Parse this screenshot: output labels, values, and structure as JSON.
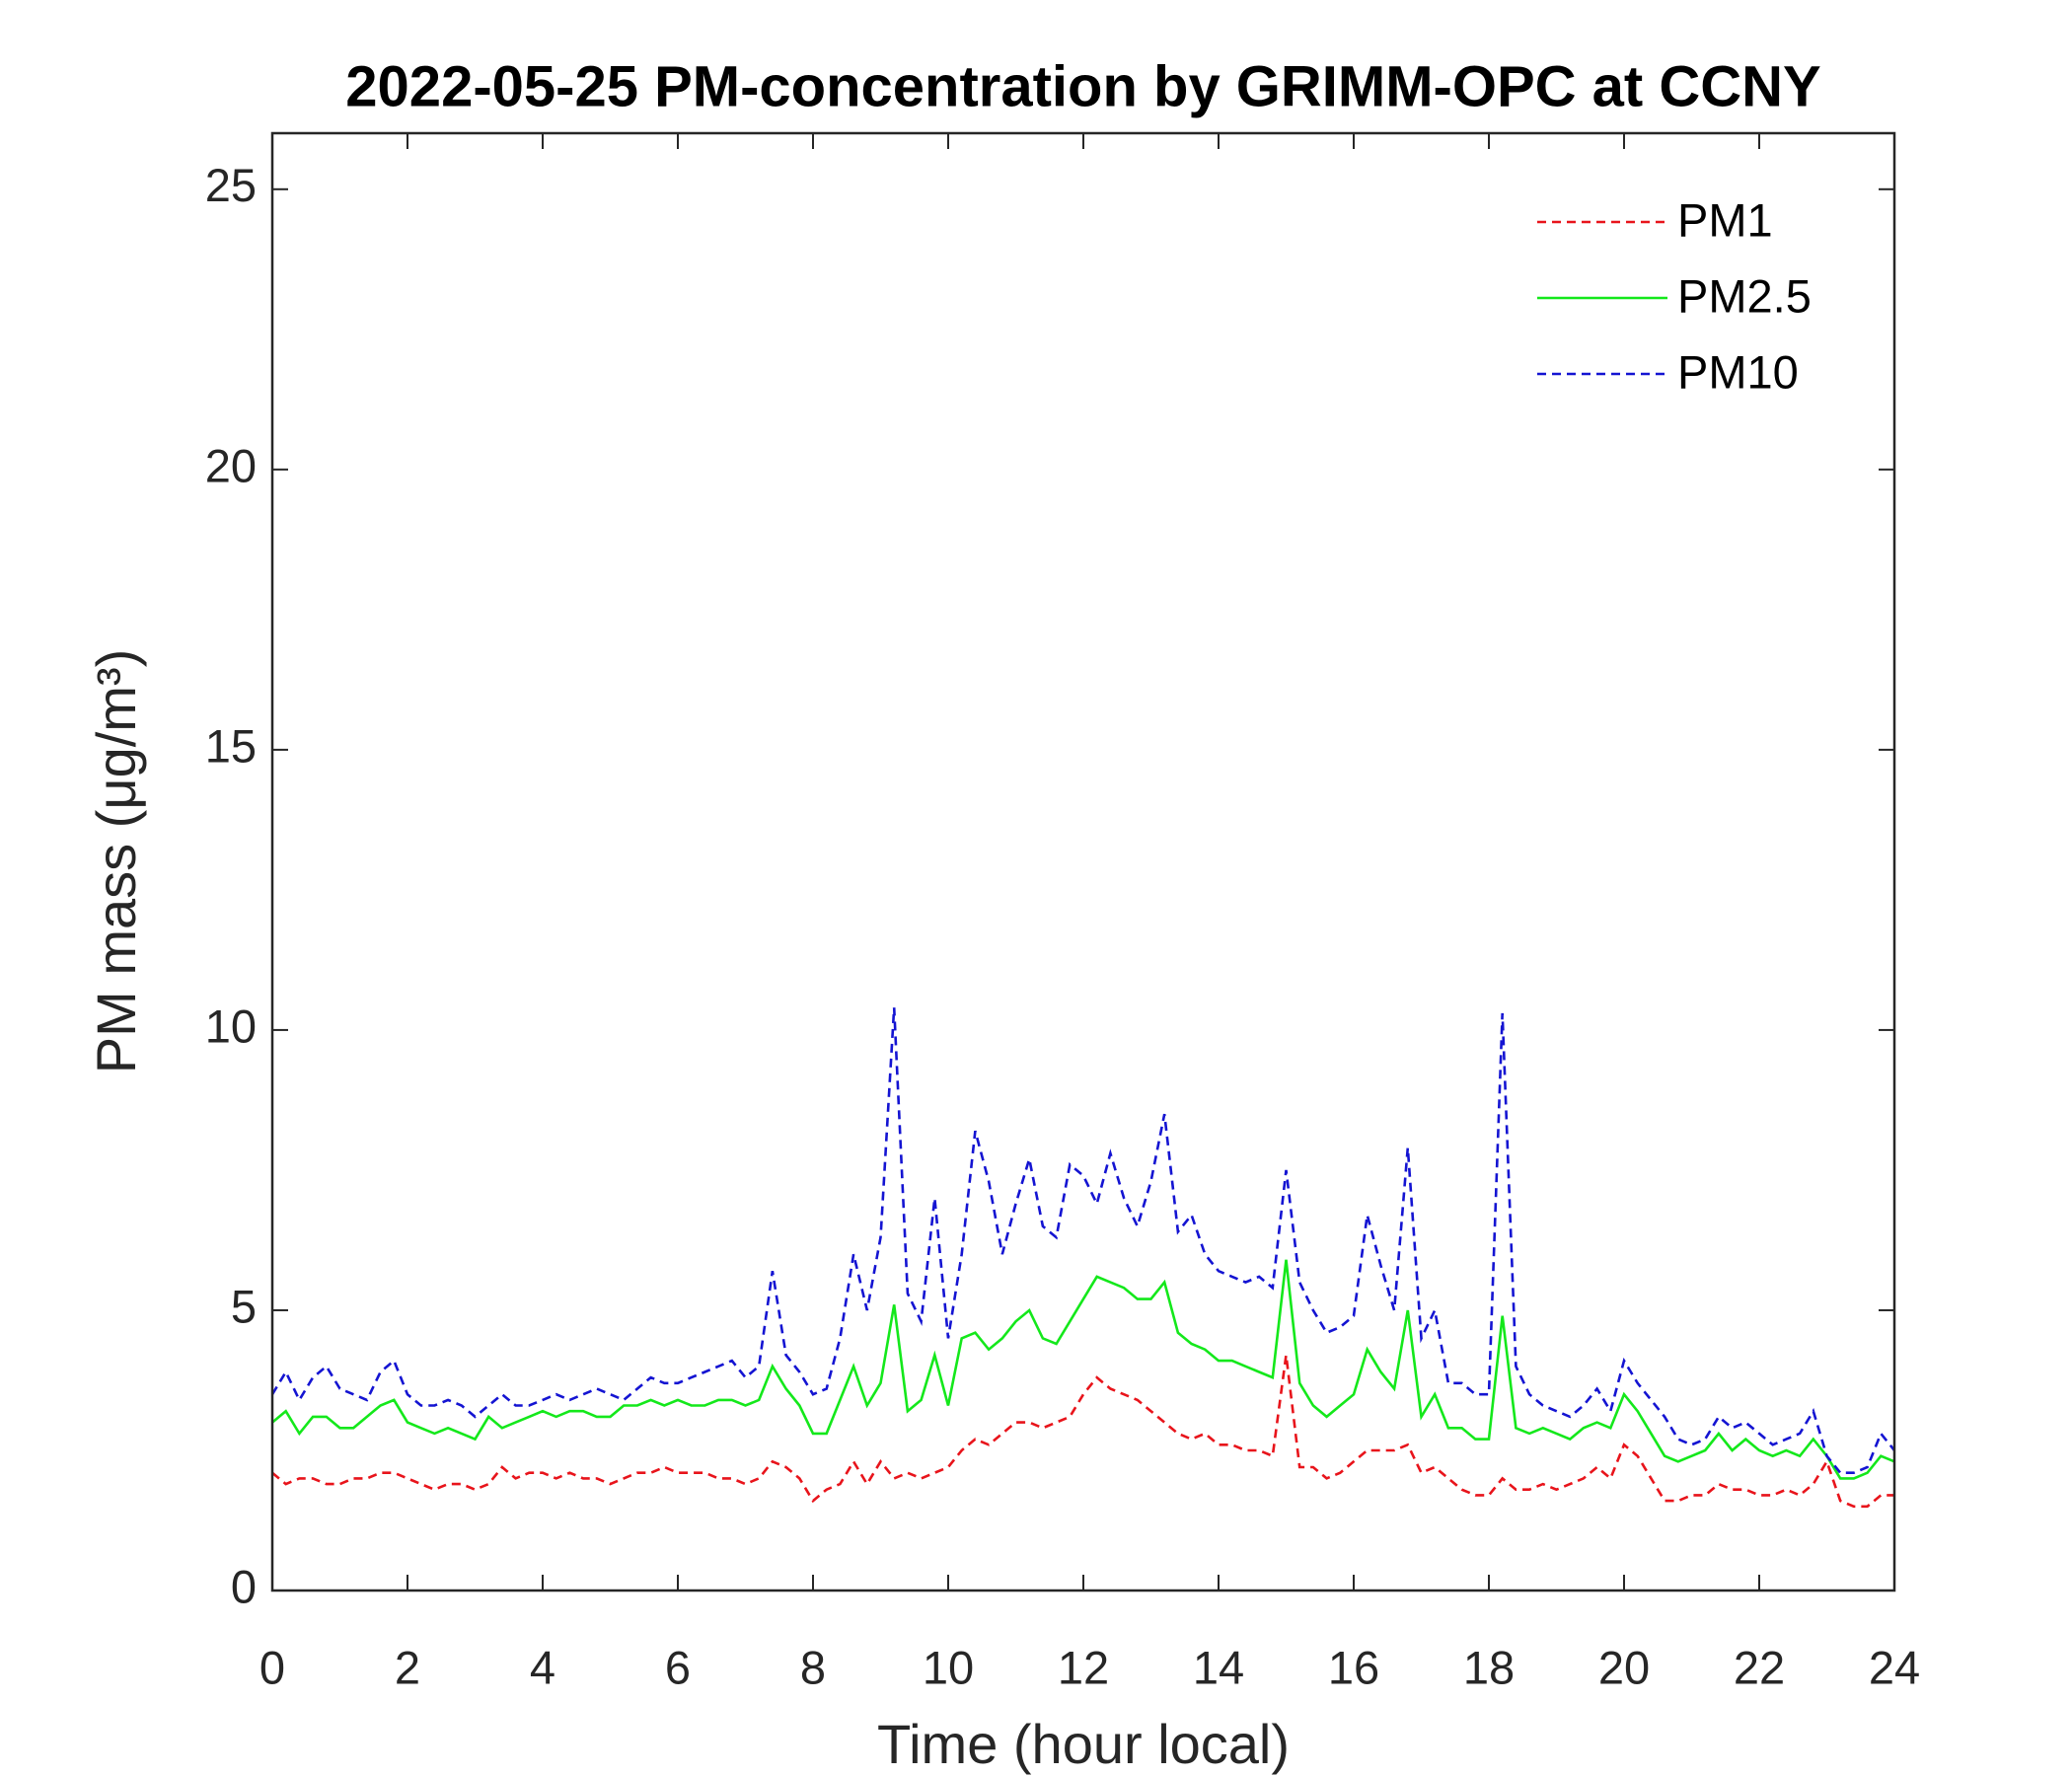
{
  "chart_data": {
    "type": "line",
    "title": "2022-05-25 PM-concentration by GRIMM-OPC at CCNY",
    "xlabel": "Time (hour local)",
    "ylabel": "PM mass (μg/m³)",
    "x": [
      0,
      0.2,
      0.4,
      0.6,
      0.8,
      1,
      1.2,
      1.4,
      1.6,
      1.8,
      2,
      2.2,
      2.4,
      2.6,
      2.8,
      3,
      3.2,
      3.4,
      3.6,
      3.8,
      4,
      4.2,
      4.4,
      4.6,
      4.8,
      5,
      5.2,
      5.4,
      5.6,
      5.8,
      6,
      6.2,
      6.4,
      6.6,
      6.8,
      7,
      7.2,
      7.4,
      7.6,
      7.8,
      8,
      8.2,
      8.4,
      8.6,
      8.8,
      9,
      9.2,
      9.4,
      9.6,
      9.8,
      10,
      10.2,
      10.4,
      10.6,
      10.8,
      11,
      11.2,
      11.4,
      11.6,
      11.8,
      12,
      12.2,
      12.4,
      12.6,
      12.8,
      13,
      13.2,
      13.4,
      13.6,
      13.8,
      14,
      14.2,
      14.4,
      14.6,
      14.8,
      15,
      15.2,
      15.4,
      15.6,
      15.8,
      16,
      16.2,
      16.4,
      16.6,
      16.8,
      17,
      17.2,
      17.4,
      17.6,
      17.8,
      18,
      18.2,
      18.4,
      18.6,
      18.8,
      19,
      19.2,
      19.4,
      19.6,
      19.8,
      20,
      20.2,
      20.4,
      20.6,
      20.8,
      21,
      21.2,
      21.4,
      21.6,
      21.8,
      22,
      22.2,
      22.4,
      22.6,
      22.8,
      23,
      23.2,
      23.4,
      23.6,
      23.8,
      24
    ],
    "series": [
      {
        "name": "PM1",
        "color": "#e8141b",
        "linestyle": "dashed",
        "values": [
          2.1,
          1.9,
          2.0,
          2.0,
          1.9,
          1.9,
          2.0,
          2.0,
          2.1,
          2.1,
          2.0,
          1.9,
          1.8,
          1.9,
          1.9,
          1.8,
          1.9,
          2.2,
          2.0,
          2.1,
          2.1,
          2.0,
          2.1,
          2.0,
          2.0,
          1.9,
          2.0,
          2.1,
          2.1,
          2.2,
          2.1,
          2.1,
          2.1,
          2.0,
          2.0,
          1.9,
          2.0,
          2.3,
          2.2,
          2.0,
          1.6,
          1.8,
          1.9,
          2.3,
          1.9,
          2.3,
          2.0,
          2.1,
          2.0,
          2.1,
          2.2,
          2.5,
          2.7,
          2.6,
          2.8,
          3.0,
          3.0,
          2.9,
          3.0,
          3.1,
          3.5,
          3.8,
          3.6,
          3.5,
          3.4,
          3.2,
          3.0,
          2.8,
          2.7,
          2.8,
          2.6,
          2.6,
          2.5,
          2.5,
          2.4,
          4.2,
          2.2,
          2.2,
          2.0,
          2.1,
          2.3,
          2.5,
          2.5,
          2.5,
          2.6,
          2.1,
          2.2,
          2.0,
          1.8,
          1.7,
          1.7,
          2.0,
          1.8,
          1.8,
          1.9,
          1.8,
          1.9,
          2.0,
          2.2,
          2.0,
          2.6,
          2.4,
          2.0,
          1.6,
          1.6,
          1.7,
          1.7,
          1.9,
          1.8,
          1.8,
          1.7,
          1.7,
          1.8,
          1.7,
          1.9,
          2.3,
          1.6,
          1.5,
          1.5,
          1.7,
          1.7
        ]
      },
      {
        "name": "PM2.5",
        "color": "#14e81b",
        "linestyle": "solid",
        "values": [
          3.0,
          3.2,
          2.8,
          3.1,
          3.1,
          2.9,
          2.9,
          3.1,
          3.3,
          3.4,
          3.0,
          2.9,
          2.8,
          2.9,
          2.8,
          2.7,
          3.1,
          2.9,
          3.0,
          3.1,
          3.2,
          3.1,
          3.2,
          3.2,
          3.1,
          3.1,
          3.3,
          3.3,
          3.4,
          3.3,
          3.4,
          3.3,
          3.3,
          3.4,
          3.4,
          3.3,
          3.4,
          4.0,
          3.6,
          3.3,
          2.8,
          2.8,
          3.4,
          4.0,
          3.3,
          3.7,
          5.1,
          3.2,
          3.4,
          4.2,
          3.3,
          4.5,
          4.6,
          4.3,
          4.5,
          4.8,
          5.0,
          4.5,
          4.4,
          4.8,
          5.2,
          5.6,
          5.5,
          5.4,
          5.2,
          5.2,
          5.5,
          4.6,
          4.4,
          4.3,
          4.1,
          4.1,
          4.0,
          3.9,
          3.8,
          5.9,
          3.7,
          3.3,
          3.1,
          3.3,
          3.5,
          4.3,
          3.9,
          3.6,
          5.0,
          3.1,
          3.5,
          2.9,
          2.9,
          2.7,
          2.7,
          4.9,
          2.9,
          2.8,
          2.9,
          2.8,
          2.7,
          2.9,
          3.0,
          2.9,
          3.5,
          3.2,
          2.8,
          2.4,
          2.3,
          2.4,
          2.5,
          2.8,
          2.5,
          2.7,
          2.5,
          2.4,
          2.5,
          2.4,
          2.7,
          2.4,
          2.0,
          2.0,
          2.1,
          2.4,
          2.3
        ]
      },
      {
        "name": "PM10",
        "color": "#1414d2",
        "linestyle": "dashed",
        "values": [
          3.5,
          3.9,
          3.4,
          3.8,
          4.0,
          3.6,
          3.5,
          3.4,
          3.9,
          4.1,
          3.5,
          3.3,
          3.3,
          3.4,
          3.3,
          3.1,
          3.3,
          3.5,
          3.3,
          3.3,
          3.4,
          3.5,
          3.4,
          3.5,
          3.6,
          3.5,
          3.4,
          3.6,
          3.8,
          3.7,
          3.7,
          3.8,
          3.9,
          4.0,
          4.1,
          3.8,
          4.0,
          5.7,
          4.2,
          3.9,
          3.5,
          3.6,
          4.5,
          6.0,
          5.0,
          6.3,
          10.4,
          5.3,
          4.8,
          7.0,
          4.5,
          6.0,
          8.2,
          7.3,
          6.0,
          6.9,
          7.7,
          6.5,
          6.3,
          7.6,
          7.4,
          6.9,
          7.8,
          7.0,
          6.5,
          7.3,
          8.5,
          6.4,
          6.7,
          6.0,
          5.7,
          5.6,
          5.5,
          5.6,
          5.4,
          7.5,
          5.5,
          5.0,
          4.6,
          4.7,
          4.9,
          6.7,
          5.8,
          5.0,
          7.9,
          4.5,
          5.0,
          3.7,
          3.7,
          3.5,
          3.5,
          10.3,
          4.0,
          3.5,
          3.3,
          3.2,
          3.1,
          3.3,
          3.6,
          3.2,
          4.1,
          3.7,
          3.4,
          3.1,
          2.7,
          2.6,
          2.7,
          3.1,
          2.9,
          3.0,
          2.8,
          2.6,
          2.7,
          2.8,
          3.2,
          2.4,
          2.1,
          2.1,
          2.2,
          2.8,
          2.5
        ]
      }
    ],
    "xlim": [
      0,
      24
    ],
    "xticks": [
      0,
      2,
      4,
      6,
      8,
      10,
      12,
      14,
      16,
      18,
      20,
      22,
      24
    ],
    "ylim": [
      0,
      26
    ],
    "yticks": [
      0,
      5,
      10,
      15,
      20,
      25
    ],
    "grid": false,
    "legend": "upper right"
  }
}
